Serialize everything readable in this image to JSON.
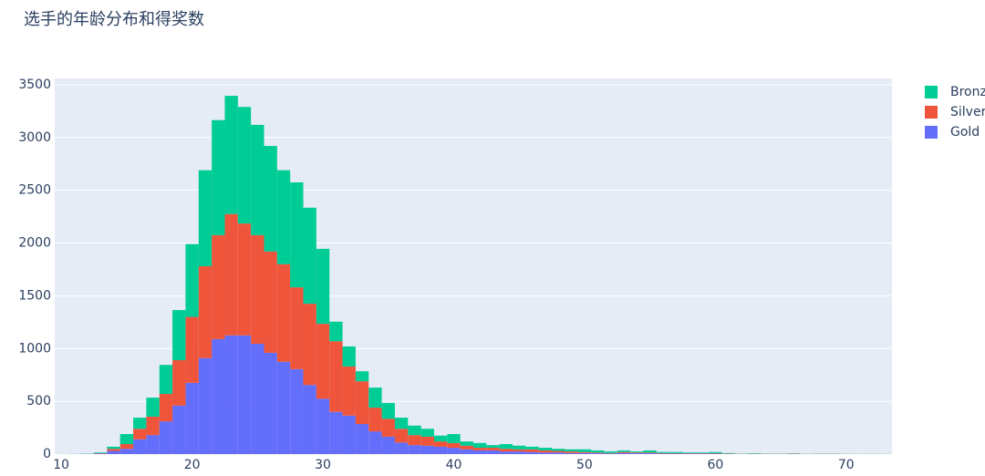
{
  "chart_data": {
    "type": "histogram",
    "title": "选手的年龄分布和得奖数",
    "barmode": "stack",
    "bins": [
      9.5,
      10.5,
      11.5,
      12.5,
      13.5,
      14.5,
      15.5,
      16.5,
      17.5,
      18.5,
      19.5,
      20.5,
      21.5,
      22.5,
      23.5,
      24.5,
      25.5,
      26.5,
      27.5,
      28.5,
      29.5,
      30.5,
      31.5,
      32.5,
      33.5,
      34.5,
      35.5,
      36.5,
      37.5,
      38.5,
      39.5,
      40.5,
      41.5,
      42.5,
      43.5,
      44.5,
      45.5,
      46.5,
      47.5,
      48.5,
      49.5,
      50.5,
      51.5,
      52.5,
      53.5,
      54.5,
      55.5,
      56.5,
      57.5,
      58.5,
      59.5,
      60.5,
      61.5,
      62.5,
      63.5,
      64.5,
      65.5,
      66.5,
      67.5,
      68.5,
      69.5,
      70.5,
      71.5,
      72.5,
      73.5
    ],
    "series": [
      {
        "name": "Gold",
        "color": "#636efa",
        "values": [
          0,
          1,
          2,
          5,
          30,
          50,
          140,
          180,
          310,
          460,
          675,
          910,
          1090,
          1125,
          1125,
          1045,
          960,
          875,
          805,
          655,
          525,
          400,
          365,
          285,
          215,
          165,
          110,
          85,
          80,
          70,
          60,
          45,
          35,
          35,
          25,
          25,
          20,
          15,
          15,
          10,
          10,
          8,
          5,
          10,
          8,
          8,
          5,
          5,
          4,
          4,
          5,
          2,
          1,
          2,
          1,
          1,
          2,
          1,
          1,
          1,
          1,
          0,
          1,
          0
        ]
      },
      {
        "name": "Silver",
        "color": "#ef553b",
        "values": [
          0,
          0,
          1,
          4,
          20,
          45,
          100,
          175,
          260,
          430,
          625,
          870,
          985,
          1150,
          1060,
          1030,
          960,
          925,
          775,
          770,
          710,
          670,
          465,
          405,
          225,
          170,
          130,
          95,
          85,
          50,
          45,
          35,
          25,
          25,
          25,
          20,
          25,
          20,
          15,
          15,
          10,
          7,
          5,
          10,
          7,
          7,
          5,
          5,
          4,
          4,
          5,
          3,
          2,
          2,
          2,
          2,
          3,
          1,
          2,
          2,
          1,
          1,
          1,
          1
        ]
      },
      {
        "name": "Bronze",
        "color": "#00cc96",
        "values": [
          1,
          1,
          2,
          6,
          20,
          95,
          105,
          180,
          275,
          475,
          690,
          910,
          1090,
          1120,
          1105,
          1045,
          1000,
          890,
          995,
          910,
          710,
          185,
          190,
          95,
          190,
          150,
          105,
          90,
          75,
          55,
          85,
          40,
          45,
          25,
          45,
          35,
          25,
          25,
          20,
          20,
          25,
          20,
          15,
          15,
          10,
          20,
          10,
          10,
          7,
          7,
          10,
          5,
          2,
          4,
          2,
          2,
          3,
          1,
          2,
          2,
          1,
          1,
          1,
          1
        ]
      }
    ],
    "xlim": [
      9.5,
      73.5
    ],
    "xticks": [
      10,
      20,
      30,
      40,
      50,
      60,
      70
    ],
    "ylim": [
      0,
      3560
    ],
    "yticks": [
      0,
      500,
      1000,
      1500,
      2000,
      2500,
      3000,
      3500
    ],
    "grid": true
  }
}
